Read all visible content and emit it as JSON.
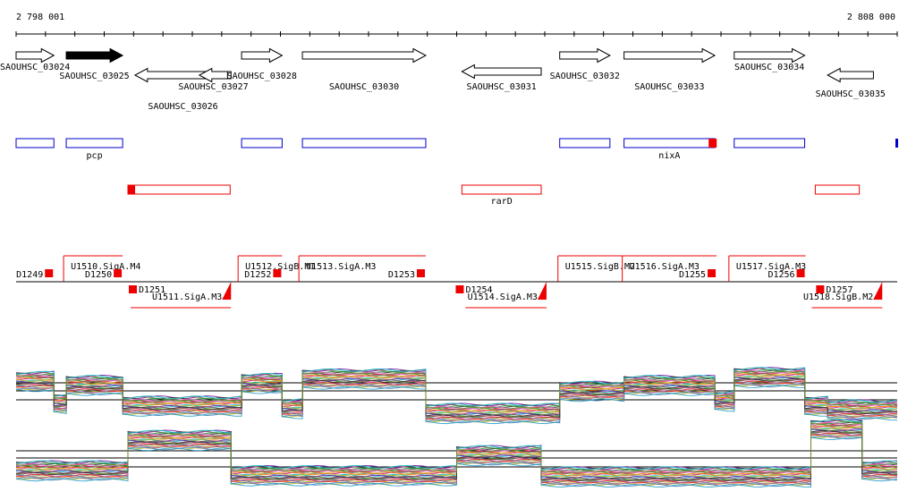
{
  "ruler": {
    "start_label": "2 798 001",
    "end_label": "2 808 000",
    "start": 2798001,
    "end": 2808000
  },
  "annotated_genes": [
    {
      "label": "SAOUHSC_03024",
      "start": 2798001,
      "end": 2798430,
      "strand": "+"
    },
    {
      "label": "SAOUHSC_03025",
      "start": 2798570,
      "end": 2799210,
      "strand": "+",
      "highlight": true
    },
    {
      "label": "SAOUHSC_03026",
      "start": 2799350,
      "end": 2800440,
      "strand": "-"
    },
    {
      "label": "SAOUHSC_03027",
      "start": 2800080,
      "end": 2800400,
      "strand": "-"
    },
    {
      "label": "SAOUHSC_03028",
      "start": 2800560,
      "end": 2801020,
      "strand": "+"
    },
    {
      "label": "SAOUHSC_03030",
      "start": 2801250,
      "end": 2802650,
      "strand": "+"
    },
    {
      "label": "SAOUHSC_03031",
      "start": 2803060,
      "end": 2803960,
      "strand": "-"
    },
    {
      "label": "SAOUHSC_03032",
      "start": 2804170,
      "end": 2804740,
      "strand": "+"
    },
    {
      "label": "SAOUHSC_03033",
      "start": 2804900,
      "end": 2805930,
      "strand": "+"
    },
    {
      "label": "SAOUHSC_03034",
      "start": 2806150,
      "end": 2806950,
      "strand": "+"
    },
    {
      "label": "SAOUHSC_03035",
      "start": 2807210,
      "end": 2807730,
      "strand": "-"
    }
  ],
  "blue_boxes": [
    {
      "label": "",
      "start": 2798001,
      "end": 2798430
    },
    {
      "label": "pcp",
      "start": 2798570,
      "end": 2799210
    },
    {
      "label": "",
      "start": 2800560,
      "end": 2801020
    },
    {
      "label": "",
      "start": 2801250,
      "end": 2802650
    },
    {
      "label": "",
      "start": 2804170,
      "end": 2804740
    },
    {
      "label": "nixA",
      "start": 2804900,
      "end": 2805930
    },
    {
      "label": "",
      "start": 2806150,
      "end": 2806950
    }
  ],
  "red_boxes": [
    {
      "label": "",
      "start": 2799270,
      "end": 2800430
    },
    {
      "label": "rarD",
      "start": 2803060,
      "end": 2803960
    },
    {
      "label": "",
      "start": 2807070,
      "end": 2807570
    }
  ],
  "transcripts": [
    {
      "label": "D1249",
      "strand": "+",
      "start": 2798001,
      "end": 2798430
    },
    {
      "label": "U1510.SigA.M4",
      "strand": "+",
      "start": 2798540,
      "end": 2799210
    },
    {
      "label": "D1250",
      "strand": "+",
      "start": 2798800,
      "end": 2799210
    },
    {
      "label": "D1251",
      "strand": "-",
      "start": 2799280,
      "end": 2799700
    },
    {
      "label": "U1511.SigA.M3",
      "strand": "-",
      "start": 2799300,
      "end": 2800440
    },
    {
      "label": "U1512.SigB.M1",
      "strand": "+",
      "start": 2800520,
      "end": 2801020
    },
    {
      "label": "D1252",
      "strand": "+",
      "start": 2800600,
      "end": 2801020
    },
    {
      "label": "U1513.SigA.M3",
      "strand": "+",
      "start": 2801210,
      "end": 2802650
    },
    {
      "label": "D1253",
      "strand": "+",
      "start": 2802220,
      "end": 2802650
    },
    {
      "label": "D1254",
      "strand": "-",
      "start": 2802990,
      "end": 2803350
    },
    {
      "label": "U1514.SigA.M3",
      "strand": "-",
      "start": 2803100,
      "end": 2804020
    },
    {
      "label": "U1515.SigB.M2",
      "strand": "+",
      "start": 2804150,
      "end": 2804900
    },
    {
      "label": "U1516.SigA.M3",
      "strand": "+",
      "start": 2804880,
      "end": 2805950
    },
    {
      "label": "D1255",
      "strand": "+",
      "start": 2805500,
      "end": 2805950
    },
    {
      "label": "U1517.SigA.M3",
      "strand": "+",
      "start": 2806090,
      "end": 2806960
    },
    {
      "label": "D1256",
      "strand": "+",
      "start": 2806450,
      "end": 2806960
    },
    {
      "label": "D1257",
      "strand": "-",
      "start": 2807080,
      "end": 2807600
    },
    {
      "label": "U1518.SigB.M2",
      "strand": "-",
      "start": 2807030,
      "end": 2807830
    }
  ],
  "expression_segments": {
    "top": [
      {
        "start": 2798001,
        "end": 2798430,
        "level": 0.7
      },
      {
        "start": 2798430,
        "end": 2798570,
        "level": 0.25
      },
      {
        "start": 2798570,
        "end": 2799210,
        "level": 0.62
      },
      {
        "start": 2799210,
        "end": 2800560,
        "level": 0.2
      },
      {
        "start": 2800560,
        "end": 2801020,
        "level": 0.66
      },
      {
        "start": 2801020,
        "end": 2801250,
        "level": 0.15
      },
      {
        "start": 2801250,
        "end": 2802650,
        "level": 0.75
      },
      {
        "start": 2802650,
        "end": 2804170,
        "level": 0.05
      },
      {
        "start": 2804170,
        "end": 2804900,
        "level": 0.5
      },
      {
        "start": 2804900,
        "end": 2805930,
        "level": 0.62
      },
      {
        "start": 2805930,
        "end": 2806150,
        "level": 0.3
      },
      {
        "start": 2806150,
        "end": 2806950,
        "level": 0.78
      },
      {
        "start": 2806950,
        "end": 2807210,
        "level": 0.2
      },
      {
        "start": 2807210,
        "end": 2808000,
        "level": 0.12
      }
    ],
    "bottom": [
      {
        "start": 2798001,
        "end": 2799270,
        "level": 0.2
      },
      {
        "start": 2799270,
        "end": 2800440,
        "level": 0.7
      },
      {
        "start": 2800440,
        "end": 2803000,
        "level": 0.12
      },
      {
        "start": 2803000,
        "end": 2803960,
        "level": 0.45
      },
      {
        "start": 2803960,
        "end": 2807020,
        "level": 0.1
      },
      {
        "start": 2807020,
        "end": 2807600,
        "level": 0.88
      },
      {
        "start": 2807600,
        "end": 2808000,
        "level": 0.2
      }
    ]
  },
  "colors": {
    "blue": "#0000cc",
    "red": "#ee0000",
    "palette": [
      "#7a1fa0",
      "#1f9e3a",
      "#d62728",
      "#ff7f0e",
      "#2ca0c8",
      "#8c564b",
      "#e377c2",
      "#9467bd",
      "#bcbd22",
      "#17becf",
      "#333333",
      "#6b8e23",
      "#c71585",
      "#4682b4"
    ]
  }
}
